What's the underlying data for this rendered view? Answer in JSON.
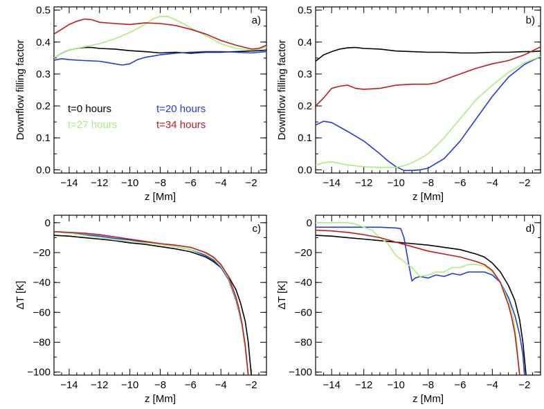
{
  "colors": {
    "black": "#000000",
    "blue": "#1f3bdc",
    "green": "#a9ef7d",
    "red": "#c4171b"
  },
  "chart_data": [
    {
      "type": "line",
      "panel_label": "a)",
      "xlabel": "z [Mm]",
      "ylabel": "Downflow filling factor",
      "xlim": [
        -15,
        -1
      ],
      "ylim": [
        -0.01,
        0.51
      ],
      "xticks": [
        -14,
        -12,
        -10,
        -8,
        -6,
        -4,
        -2
      ],
      "yticks": [
        0.0,
        0.1,
        0.2,
        0.3,
        0.4,
        0.5
      ],
      "ytick_labels": [
        "0.0",
        "0.1",
        "0.2",
        "0.3",
        "0.4",
        "0.5"
      ],
      "legend": [
        {
          "label": "t=0  hours",
          "color": "black"
        },
        {
          "label": "t=20 hours",
          "color": "blue"
        },
        {
          "label": "t=27 hours",
          "color": "green"
        },
        {
          "label": "t=34 hours",
          "color": "red"
        }
      ],
      "series": [
        {
          "name": "t=0  hours",
          "color": "black",
          "x": [
            -15,
            -14.5,
            -14,
            -13.5,
            -13,
            -12.5,
            -12,
            -11,
            -10,
            -9,
            -8,
            -7,
            -6,
            -5,
            -4,
            -3,
            -2,
            -1.5,
            -1
          ],
          "y": [
            0.35,
            0.365,
            0.375,
            0.38,
            0.383,
            0.383,
            0.38,
            0.378,
            0.373,
            0.37,
            0.366,
            0.368,
            0.365,
            0.368,
            0.368,
            0.37,
            0.372,
            0.373,
            0.375
          ]
        },
        {
          "name": "t=20 hours",
          "color": "blue",
          "x": [
            -15,
            -14.5,
            -14,
            -13,
            -12,
            -11.5,
            -11,
            -10.5,
            -10,
            -9.5,
            -9,
            -8,
            -7,
            -6,
            -5,
            -4,
            -3,
            -2,
            -1
          ],
          "y": [
            0.343,
            0.348,
            0.345,
            0.342,
            0.34,
            0.336,
            0.332,
            0.328,
            0.332,
            0.345,
            0.352,
            0.36,
            0.365,
            0.368,
            0.37,
            0.37,
            0.368,
            0.366,
            0.37
          ]
        },
        {
          "name": "t=27 hours",
          "color": "green",
          "x": [
            -15,
            -14.5,
            -14,
            -13,
            -12,
            -11,
            -10,
            -9,
            -8.5,
            -8,
            -7.5,
            -7,
            -6,
            -5,
            -4,
            -3,
            -2,
            -1.5,
            -1
          ],
          "y": [
            0.35,
            0.365,
            0.375,
            0.385,
            0.395,
            0.41,
            0.43,
            0.455,
            0.472,
            0.48,
            0.48,
            0.47,
            0.445,
            0.42,
            0.395,
            0.38,
            0.375,
            0.378,
            0.385
          ]
        },
        {
          "name": "t=34 hours",
          "color": "red",
          "x": [
            -15,
            -14.5,
            -14,
            -13.5,
            -13,
            -12.5,
            -12,
            -11,
            -10,
            -9,
            -8,
            -7,
            -6,
            -5,
            -4,
            -3,
            -2,
            -1.5,
            -1
          ],
          "y": [
            0.425,
            0.44,
            0.455,
            0.465,
            0.472,
            0.47,
            0.462,
            0.458,
            0.455,
            0.46,
            0.458,
            0.452,
            0.44,
            0.425,
            0.405,
            0.39,
            0.378,
            0.38,
            0.39
          ]
        }
      ]
    },
    {
      "type": "line",
      "panel_label": "b)",
      "xlabel": "z [Mm]",
      "ylabel": "Downflow filling factor",
      "xlim": [
        -15,
        -1
      ],
      "ylim": [
        -0.01,
        0.51
      ],
      "xticks": [
        -14,
        -12,
        -10,
        -8,
        -6,
        -4,
        -2
      ],
      "yticks": [
        0.0,
        0.1,
        0.2,
        0.3,
        0.4,
        0.5
      ],
      "ytick_labels": [
        "0.0",
        "0.1",
        "0.2",
        "0.3",
        "0.4",
        "0.5"
      ],
      "series": [
        {
          "name": "t=0  hours",
          "color": "black",
          "x": [
            -15,
            -14.5,
            -14,
            -13.5,
            -13,
            -12.5,
            -12,
            -11,
            -10,
            -9,
            -8,
            -7,
            -6,
            -5,
            -4,
            -3,
            -2,
            -1.5,
            -1
          ],
          "y": [
            0.34,
            0.36,
            0.37,
            0.378,
            0.382,
            0.383,
            0.38,
            0.378,
            0.372,
            0.37,
            0.368,
            0.368,
            0.366,
            0.366,
            0.368,
            0.368,
            0.37,
            0.37,
            0.372
          ]
        },
        {
          "name": "t=20 hours",
          "color": "blue",
          "x": [
            -15,
            -14.5,
            -14,
            -13,
            -12,
            -11,
            -10.5,
            -10,
            -9.5,
            -9,
            -8.5,
            -8,
            -7,
            -6,
            -5,
            -4,
            -3,
            -2,
            -1
          ],
          "y": [
            0.14,
            0.152,
            0.148,
            0.12,
            0.09,
            0.05,
            0.028,
            0.01,
            -0.002,
            -0.002,
            0.0,
            0.005,
            0.035,
            0.09,
            0.16,
            0.23,
            0.29,
            0.33,
            0.355
          ]
        },
        {
          "name": "t=27 hours",
          "color": "green",
          "x": [
            -15,
            -14.5,
            -14,
            -13.5,
            -13,
            -12,
            -11,
            -10,
            -9.5,
            -9,
            -8.5,
            -8,
            -7,
            -6,
            -5,
            -4,
            -3,
            -2,
            -1
          ],
          "y": [
            0.015,
            0.022,
            0.025,
            0.02,
            0.015,
            0.01,
            0.007,
            0.008,
            0.013,
            0.022,
            0.035,
            0.05,
            0.1,
            0.16,
            0.22,
            0.265,
            0.305,
            0.335,
            0.355
          ]
        },
        {
          "name": "t=34 hours",
          "color": "red",
          "x": [
            -15,
            -14.5,
            -14,
            -13.5,
            -13,
            -12.5,
            -12,
            -11,
            -10,
            -9,
            -8,
            -7.5,
            -7,
            -6,
            -5,
            -4,
            -3,
            -2,
            -1
          ],
          "y": [
            0.2,
            0.225,
            0.255,
            0.262,
            0.265,
            0.255,
            0.252,
            0.255,
            0.265,
            0.268,
            0.268,
            0.272,
            0.282,
            0.3,
            0.318,
            0.332,
            0.342,
            0.36,
            0.385
          ]
        }
      ]
    },
    {
      "type": "line",
      "panel_label": "c)",
      "xlabel": "z [Mm]",
      "ylabel": "ΔT [K]",
      "xlim": [
        -15,
        -1
      ],
      "ylim": [
        -102,
        5
      ],
      "xticks": [
        -14,
        -12,
        -10,
        -8,
        -6,
        -4,
        -2
      ],
      "yticks": [
        0,
        -20,
        -40,
        -60,
        -80,
        -100
      ],
      "ytick_labels": [
        "0",
        "-20",
        "-40",
        "-60",
        "-80",
        "-100"
      ],
      "series": [
        {
          "name": "t=0  hours",
          "color": "black",
          "x": [
            -15,
            -14,
            -13,
            -12,
            -11,
            -10,
            -9,
            -8,
            -7,
            -6,
            -5,
            -4.5,
            -4,
            -3.5,
            -3,
            -2.7,
            -2.4,
            -2.2,
            -2
          ],
          "y": [
            -8.5,
            -9,
            -10,
            -11,
            -12,
            -13.5,
            -14.5,
            -16,
            -17.5,
            -19.5,
            -23,
            -26,
            -30,
            -36,
            -45,
            -54,
            -66,
            -80,
            -102
          ]
        },
        {
          "name": "t=20 hours",
          "color": "blue",
          "x": [
            -15,
            -14,
            -13,
            -12,
            -11,
            -10,
            -9,
            -8,
            -7,
            -6,
            -5,
            -4.5,
            -4,
            -3.5,
            -3,
            -2.8,
            -2.6,
            -2.4,
            -2.2
          ],
          "y": [
            -6,
            -7,
            -8,
            -9,
            -10.5,
            -11.5,
            -13,
            -14.5,
            -16,
            -18,
            -22,
            -25,
            -30,
            -38,
            -52,
            -60,
            -70,
            -84,
            -102
          ]
        },
        {
          "name": "t=27 hours",
          "color": "green",
          "x": [
            -15,
            -14,
            -13,
            -12,
            -11,
            -10,
            -9,
            -8,
            -7,
            -6,
            -5,
            -4.5,
            -4,
            -3.5,
            -3,
            -2.8,
            -2.6,
            -2.4,
            -2.2
          ],
          "y": [
            -6,
            -7,
            -8.5,
            -10,
            -11.5,
            -12.5,
            -13.5,
            -14.5,
            -16,
            -18,
            -21,
            -24,
            -29,
            -37,
            -51,
            -59,
            -70,
            -84,
            -102
          ]
        },
        {
          "name": "t=34 hours",
          "color": "red",
          "x": [
            -15,
            -14,
            -13,
            -12,
            -11,
            -10,
            -9,
            -8,
            -7,
            -6,
            -5,
            -4.5,
            -4,
            -3.5,
            -3,
            -2.8,
            -2.6,
            -2.4,
            -2.2
          ],
          "y": [
            -6,
            -6.5,
            -7,
            -8,
            -9.5,
            -11,
            -12.5,
            -14,
            -15,
            -16.5,
            -20,
            -23,
            -28,
            -36,
            -50,
            -58,
            -68,
            -82,
            -102
          ]
        }
      ]
    },
    {
      "type": "line",
      "panel_label": "d)",
      "xlabel": "z [Mm]",
      "ylabel": "ΔT [K]",
      "xlim": [
        -15,
        -1
      ],
      "ylim": [
        -102,
        5
      ],
      "xticks": [
        -14,
        -12,
        -10,
        -8,
        -6,
        -4,
        -2
      ],
      "yticks": [
        0,
        -20,
        -40,
        -60,
        -80,
        -100
      ],
      "ytick_labels": [
        "0",
        "-20",
        "-40",
        "-60",
        "-80",
        "-100"
      ],
      "series": [
        {
          "name": "t=0  hours",
          "color": "black",
          "x": [
            -15,
            -14,
            -13,
            -12,
            -11,
            -10,
            -9,
            -8,
            -7,
            -6,
            -5,
            -4.5,
            -4,
            -3.5,
            -3,
            -2.6,
            -2.3,
            -2.1,
            -1.9
          ],
          "y": [
            -8.5,
            -9,
            -10,
            -11,
            -12,
            -13,
            -14,
            -15,
            -16.5,
            -18,
            -21,
            -23,
            -27,
            -33,
            -42,
            -52,
            -65,
            -80,
            -102
          ]
        },
        {
          "name": "t=20 hours",
          "color": "blue",
          "x": [
            -15,
            -14,
            -13,
            -12,
            -11,
            -10,
            -9.7,
            -9.5,
            -9.3,
            -9.1,
            -9,
            -8.8,
            -8.5,
            -8,
            -7.5,
            -7,
            -6.5,
            -6,
            -5.5,
            -5,
            -4.5,
            -4,
            -3.5,
            -3,
            -2.6,
            -2.3,
            -2.1,
            -2
          ],
          "y": [
            -3,
            -3,
            -3,
            -3,
            -3,
            -3.5,
            -4,
            -10,
            -22,
            -34,
            -39,
            -37,
            -36,
            -37,
            -35,
            -36,
            -34,
            -35,
            -33,
            -33,
            -33,
            -35,
            -40,
            -50,
            -62,
            -75,
            -88,
            -102
          ]
        },
        {
          "name": "t=27 hours",
          "color": "green",
          "x": [
            -15,
            -14,
            -13,
            -12.5,
            -12,
            -11.5,
            -11,
            -10.5,
            -10,
            -9.5,
            -9,
            -8.5,
            -8,
            -7.5,
            -7,
            -6.5,
            -6,
            -5.5,
            -5,
            -4.5,
            -4,
            -3.5,
            -3,
            -2.7,
            -2.5,
            -2.3
          ],
          "y": [
            0,
            0,
            0,
            -1,
            -3,
            -5,
            -10,
            -14,
            -22,
            -26,
            -30,
            -36,
            -35,
            -33,
            -33,
            -30,
            -30,
            -28,
            -28,
            -29,
            -33,
            -40,
            -52,
            -63,
            -78,
            -102
          ]
        },
        {
          "name": "t=34 hours",
          "color": "red",
          "x": [
            -15,
            -14,
            -13,
            -12,
            -11,
            -10,
            -9,
            -8,
            -7,
            -6,
            -5,
            -4.5,
            -4,
            -3.5,
            -3,
            -2.8,
            -2.6,
            -2.45,
            -2.3
          ],
          "y": [
            -5,
            -5.5,
            -6.5,
            -8,
            -10,
            -13,
            -16,
            -19,
            -21,
            -23,
            -26,
            -28,
            -32,
            -40,
            -55,
            -63,
            -74,
            -87,
            -102
          ]
        }
      ]
    }
  ]
}
